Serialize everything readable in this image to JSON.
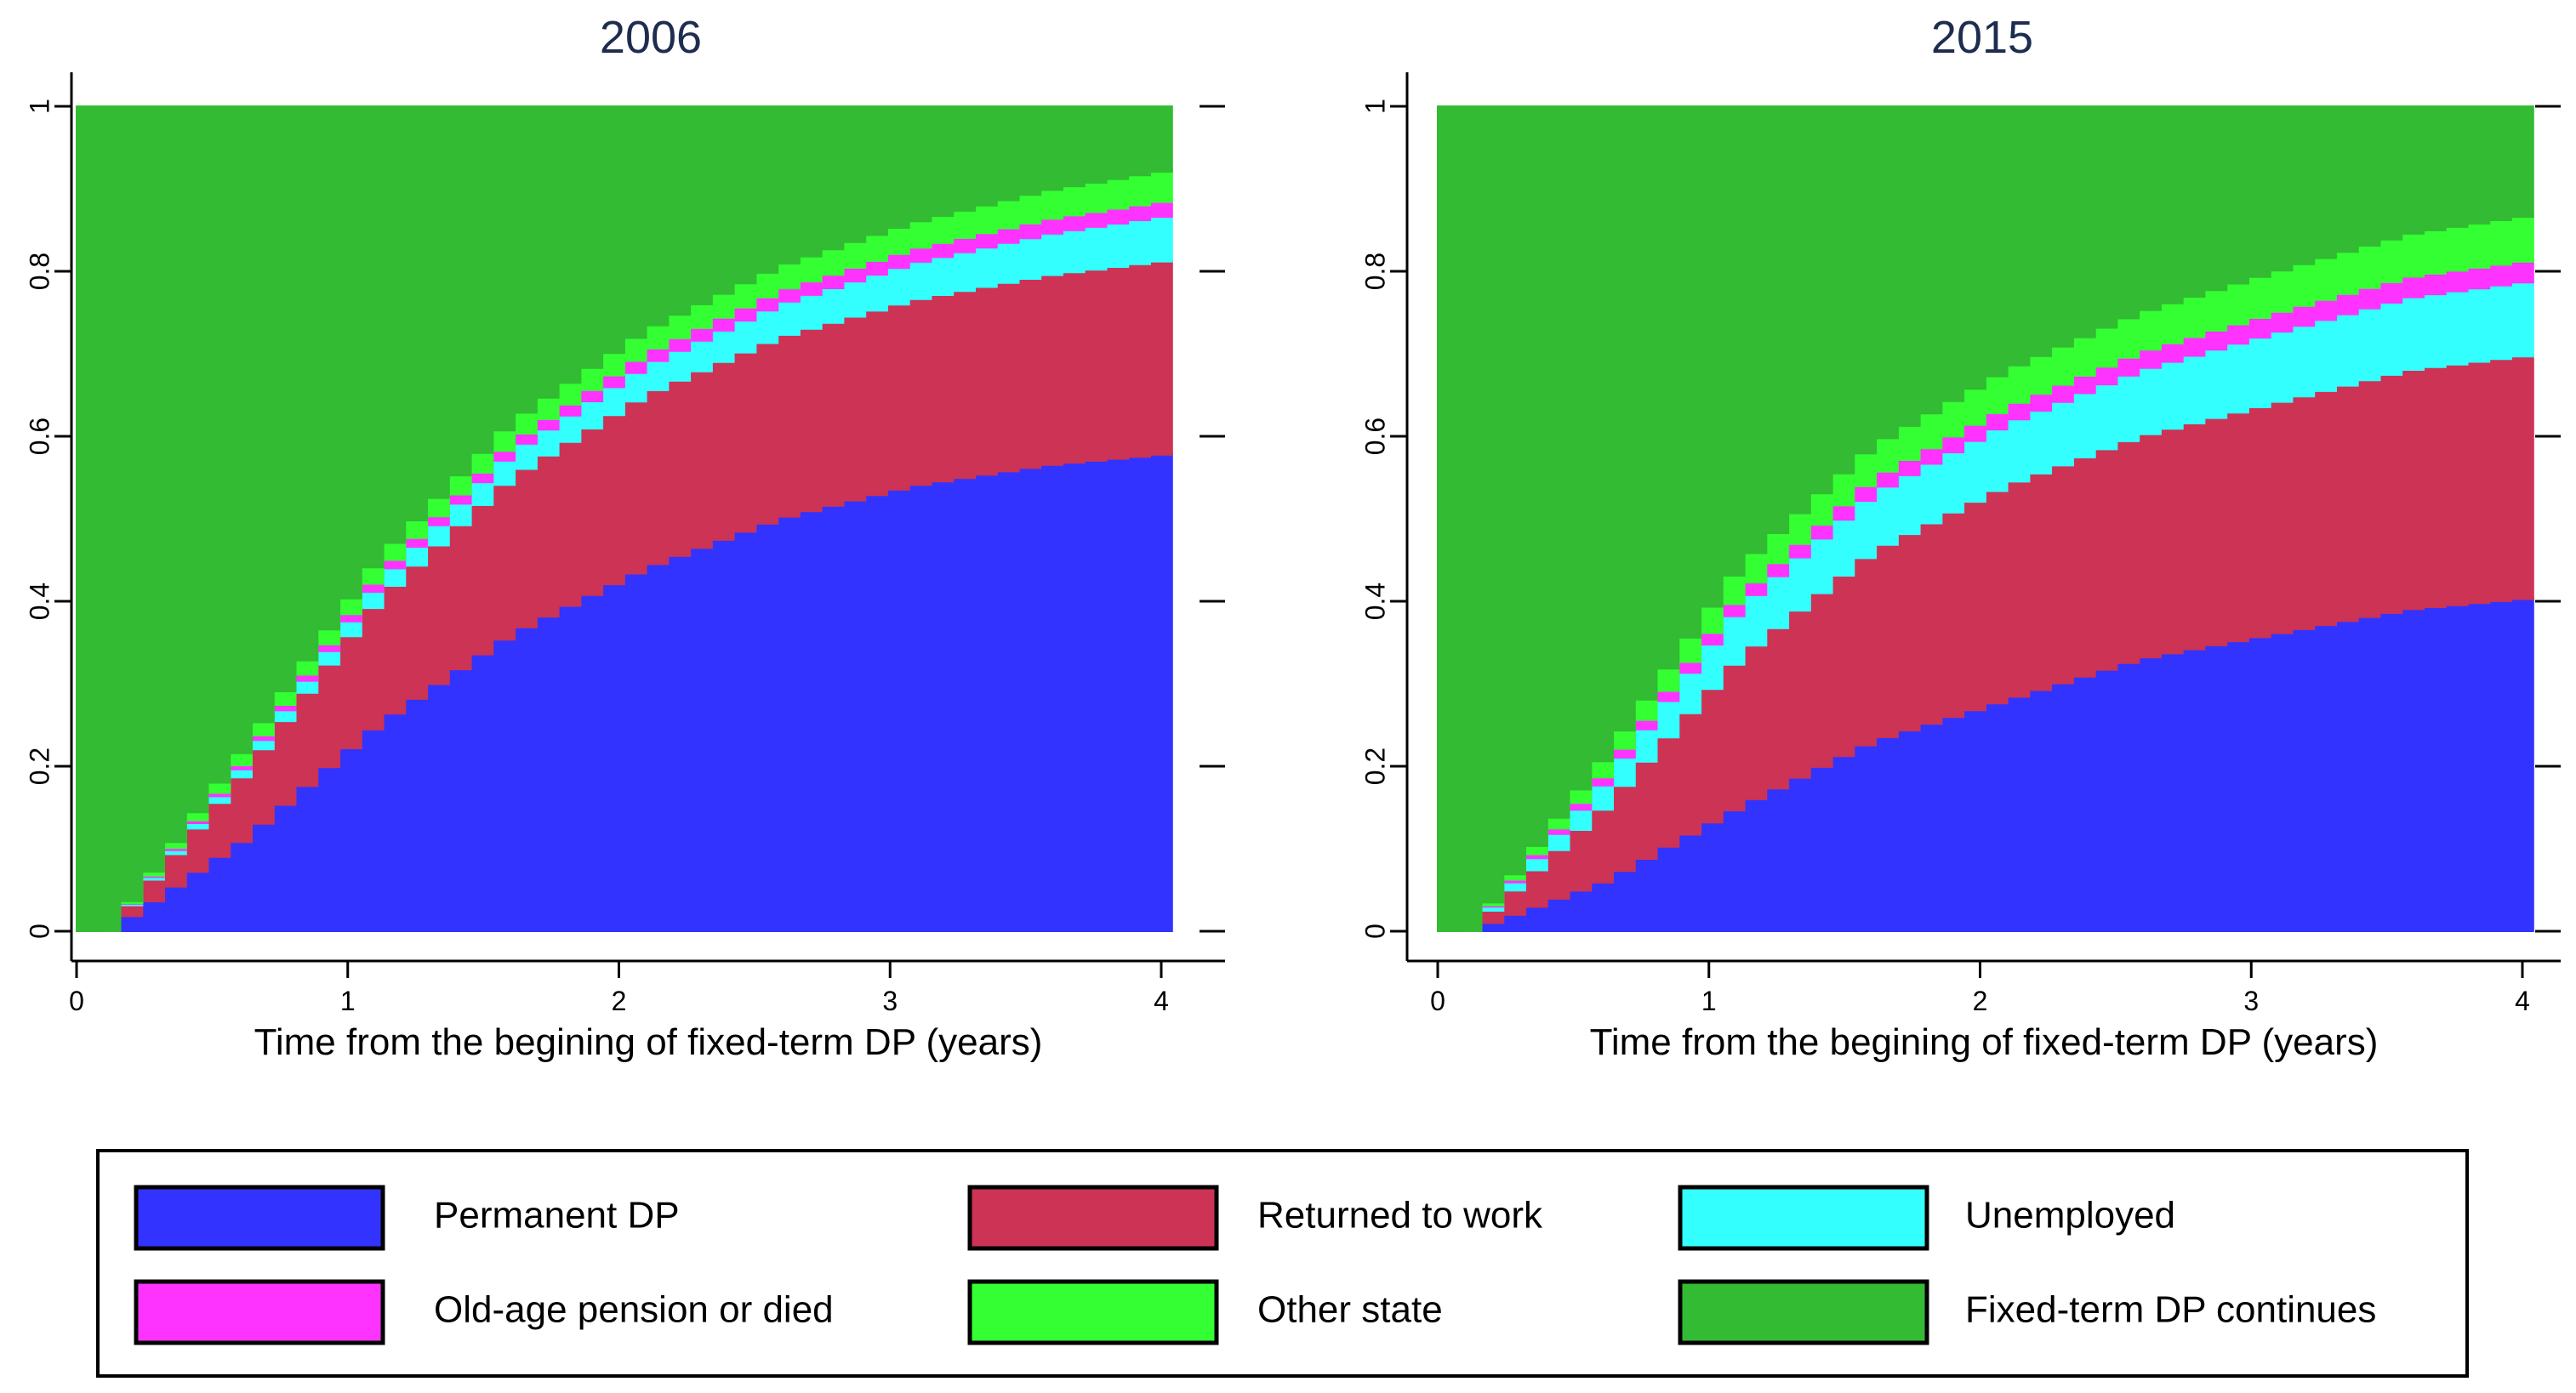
{
  "chart_data": [
    {
      "type": "area",
      "stacked": true,
      "title": "2006",
      "xlabel": "Time from the begining of fixed-term DP (years)",
      "ylabel": "",
      "xlim": [
        0,
        4
      ],
      "ylim": [
        0,
        1
      ],
      "xticks": [
        "0",
        "1",
        "2",
        "3",
        "4"
      ],
      "yticks": [
        "0",
        "0.2",
        "0.4",
        "0.6",
        "0.8",
        "1"
      ],
      "x": [
        0,
        0.5,
        1,
        1.5,
        2,
        2.5,
        3,
        3.5,
        4
      ],
      "series": [
        {
          "name": "Permanent DP",
          "values": [
            0,
            0.11,
            0.25,
            0.36,
            0.44,
            0.5,
            0.54,
            0.565,
            0.58
          ]
        },
        {
          "name": "Returned to work",
          "values": [
            0,
            0.08,
            0.15,
            0.19,
            0.21,
            0.22,
            0.225,
            0.23,
            0.235
          ]
        },
        {
          "name": "Unemployed",
          "values": [
            0,
            0.01,
            0.02,
            0.03,
            0.035,
            0.04,
            0.045,
            0.05,
            0.055
          ]
        },
        {
          "name": "Old-age pension or died",
          "values": [
            0,
            0.005,
            0.01,
            0.012,
            0.015,
            0.016,
            0.017,
            0.018,
            0.018
          ]
        },
        {
          "name": "Other state",
          "values": [
            0,
            0.015,
            0.02,
            0.025,
            0.028,
            0.03,
            0.032,
            0.035,
            0.037
          ]
        },
        {
          "name": "Fixed-term DP continues",
          "values": [
            1,
            0.78,
            0.55,
            0.383,
            0.272,
            0.194,
            0.141,
            0.102,
            0.075
          ]
        }
      ]
    },
    {
      "type": "area",
      "stacked": true,
      "title": "2015",
      "xlabel": "Time from the begining of fixed-term DP (years)",
      "ylabel": "",
      "xlim": [
        0,
        4
      ],
      "ylim": [
        0,
        1
      ],
      "xticks": [
        "0",
        "1",
        "2",
        "3",
        "4"
      ],
      "yticks": [
        "0",
        "0.2",
        "0.4",
        "0.6",
        "0.8",
        "1"
      ],
      "x": [
        0,
        0.5,
        1,
        1.5,
        2,
        2.5,
        3,
        3.5,
        4
      ],
      "series": [
        {
          "name": "Permanent DP",
          "values": [
            0,
            0.06,
            0.15,
            0.23,
            0.28,
            0.33,
            0.36,
            0.39,
            0.405
          ]
        },
        {
          "name": "Returned to work",
          "values": [
            0,
            0.09,
            0.18,
            0.23,
            0.26,
            0.27,
            0.28,
            0.29,
            0.295
          ]
        },
        {
          "name": "Unemployed",
          "values": [
            0,
            0.03,
            0.06,
            0.07,
            0.075,
            0.08,
            0.085,
            0.088,
            0.09
          ]
        },
        {
          "name": "Old-age pension or died",
          "values": [
            0,
            0.01,
            0.015,
            0.018,
            0.02,
            0.022,
            0.024,
            0.025,
            0.025
          ]
        },
        {
          "name": "Other state",
          "values": [
            0,
            0.02,
            0.035,
            0.04,
            0.045,
            0.048,
            0.05,
            0.052,
            0.055
          ]
        },
        {
          "name": "Fixed-term DP continues",
          "values": [
            1,
            0.79,
            0.56,
            0.412,
            0.32,
            0.25,
            0.201,
            0.155,
            0.13
          ]
        }
      ]
    }
  ],
  "legend": {
    "position": "bottom",
    "items": [
      {
        "label": "Permanent DP",
        "color": "#3333ff"
      },
      {
        "label": "Returned to work",
        "color": "#cc3355"
      },
      {
        "label": "Unemployed",
        "color": "#33ffff"
      },
      {
        "label": "Old-age pension or died",
        "color": "#ff33ff"
      },
      {
        "label": "Other state",
        "color": "#33ff33"
      },
      {
        "label": "Fixed-term DP continues",
        "color": "#33bb33"
      }
    ]
  },
  "colors": {
    "Permanent DP": "#3333ff",
    "Returned to work": "#cc3355",
    "Unemployed": "#33ffff",
    "Old-age pension or died": "#ff33ff",
    "Other state": "#33ff33",
    "Fixed-term DP continues": "#33bb33",
    "title": "#1e2d4f"
  }
}
